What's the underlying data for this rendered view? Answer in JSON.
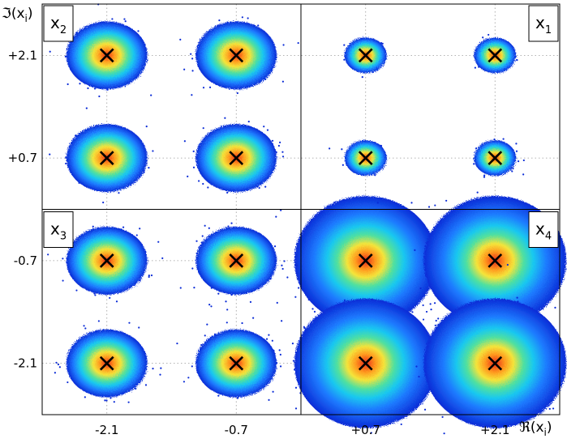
{
  "chart_data": {
    "type": "scatter",
    "title": "",
    "xlabel": "ℜ(x_i)",
    "ylabel": "ℑ(x_i)",
    "xlim": [
      -2.8,
      2.8
    ],
    "ylim": [
      -2.8,
      2.8
    ],
    "x_ticks": [
      {
        "value": -2.1,
        "label": "-2.1"
      },
      {
        "value": -0.7,
        "label": "-0.7"
      },
      {
        "value": 0.7,
        "label": "+0.7"
      },
      {
        "value": 2.1,
        "label": "+2.1"
      }
    ],
    "y_ticks": [
      {
        "value": 2.1,
        "label": "+2.1"
      },
      {
        "value": 0.7,
        "label": "+0.7"
      },
      {
        "value": -0.7,
        "label": "-0.7"
      },
      {
        "value": -2.1,
        "label": "-2.1"
      }
    ],
    "grid": true,
    "quadrant_dividers": [
      0,
      0
    ],
    "quadrants": [
      {
        "name": "x",
        "sub": "1",
        "corner": "top-right",
        "points": [
          [
            0.7,
            2.1
          ],
          [
            2.1,
            2.1
          ],
          [
            0.7,
            0.7
          ],
          [
            2.1,
            0.7
          ]
        ],
        "spread": "small"
      },
      {
        "name": "x",
        "sub": "2",
        "corner": "top-left",
        "points": [
          [
            -2.1,
            2.1
          ],
          [
            -0.7,
            2.1
          ],
          [
            -2.1,
            0.7
          ],
          [
            -0.7,
            0.7
          ]
        ],
        "spread": "medium"
      },
      {
        "name": "x",
        "sub": "3",
        "corner": "top-left",
        "points": [
          [
            -2.1,
            -0.7
          ],
          [
            -0.7,
            -0.7
          ],
          [
            -2.1,
            -2.1
          ],
          [
            -0.7,
            -2.1
          ]
        ],
        "spread": "medium"
      },
      {
        "name": "x",
        "sub": "4",
        "corner": "top-right",
        "points": [
          [
            0.7,
            -0.7
          ],
          [
            2.1,
            -0.7
          ],
          [
            0.7,
            -2.1
          ],
          [
            2.1,
            -2.1
          ]
        ],
        "spread": "large"
      }
    ],
    "marker": "x",
    "colors": {
      "outer": "#0a2bd6",
      "mid1": "#1e7bff",
      "mid2": "#19c8f0",
      "mid3": "#4fe0a0",
      "mid4": "#f5e43a",
      "mid5": "#ff9a1f",
      "core": "#e8281a",
      "marker": "#000000"
    }
  }
}
